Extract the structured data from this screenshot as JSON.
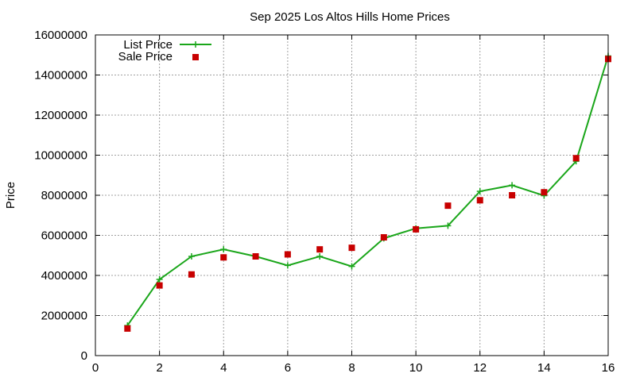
{
  "chart_data": {
    "type": "line",
    "title": "Sep 2025 Los Altos Hills Home Prices",
    "xlabel": "",
    "ylabel": "Price",
    "xlim": [
      0,
      16
    ],
    "ylim": [
      0,
      16000000
    ],
    "x_ticks": [
      0,
      2,
      4,
      6,
      8,
      10,
      12,
      14,
      16
    ],
    "y_ticks": [
      0,
      2000000,
      4000000,
      6000000,
      8000000,
      10000000,
      12000000,
      14000000,
      16000000
    ],
    "grid": true,
    "legend_position": "top-left",
    "series": [
      {
        "name": "List Price",
        "style": "line-with-plus-markers",
        "color": "#1aa61a",
        "x": [
          1,
          2,
          3,
          4,
          5,
          6,
          7,
          8,
          9,
          10,
          11,
          12,
          13,
          14,
          15,
          16
        ],
        "y": [
          1500000,
          3800000,
          4950000,
          5300000,
          4950000,
          4500000,
          4950000,
          4450000,
          5850000,
          6350000,
          6480000,
          8200000,
          8500000,
          7980000,
          9700000,
          14950000
        ]
      },
      {
        "name": "Sale Price",
        "style": "square-markers",
        "color": "#c80000",
        "x": [
          1,
          2,
          3,
          4,
          5,
          6,
          7,
          8,
          9,
          10,
          11,
          12,
          13,
          14,
          15,
          16
        ],
        "y": [
          1350000,
          3500000,
          4050000,
          4900000,
          4950000,
          5050000,
          5300000,
          5380000,
          5900000,
          6300000,
          7480000,
          7750000,
          8000000,
          8150000,
          9850000,
          14800000
        ]
      }
    ]
  }
}
